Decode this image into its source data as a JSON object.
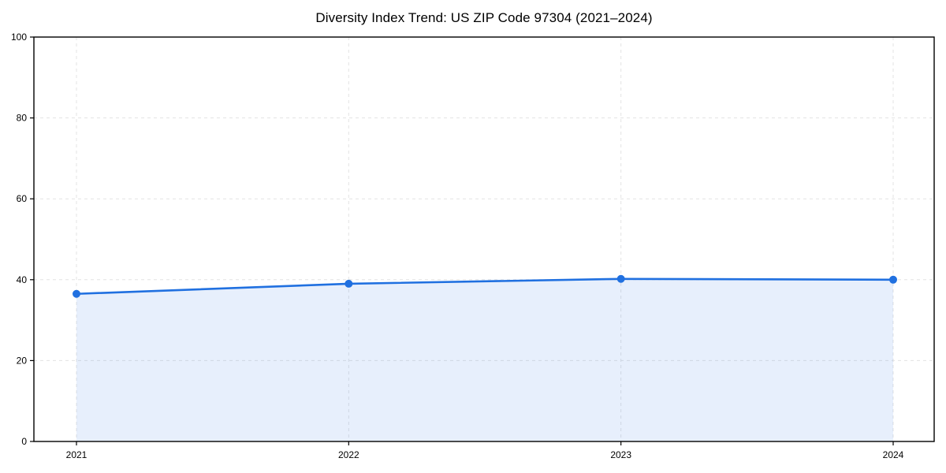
{
  "chart_data": {
    "type": "area",
    "title": "Diversity Index Trend: US ZIP Code 97304 (2021–2024)",
    "x": [
      "2021",
      "2022",
      "2023",
      "2024"
    ],
    "series": [
      {
        "name": "Diversity Index",
        "values": [
          36.5,
          39.0,
          40.2,
          40.0
        ]
      }
    ],
    "xlabel": "",
    "ylabel": "",
    "ylim": [
      0,
      100
    ],
    "yticks": [
      0,
      20,
      40,
      60,
      80,
      100
    ],
    "grid": true,
    "grid_style": "dashed",
    "legend": false,
    "marker": "circle",
    "colors": {
      "line": "#2070e0",
      "marker": "#2070e0",
      "fill": "rgba(32, 112, 224, 0.11)",
      "grid": "#e3e3e3",
      "axis": "#000000",
      "background": "#ffffff"
    }
  }
}
